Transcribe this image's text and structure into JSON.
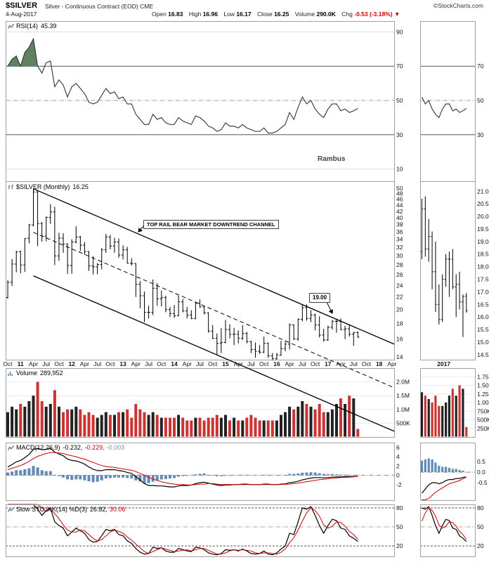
{
  "header": {
    "symbol": "$SILVER",
    "description": "Silver - Continuous Contract (EOD) CME",
    "copyright": "©StockCharts.com",
    "date": "4-Aug-2017",
    "quote": {
      "open_label": "Open",
      "open": "16.83",
      "high_label": "High",
      "high": "16.96",
      "low_label": "Low",
      "low": "16.17",
      "close_label": "Close",
      "close": "16.25",
      "volume_label": "Volume",
      "volume": "290.0K",
      "chg_label": "Chg",
      "chg": "-0.53 (-3.18%)",
      "chg_arrow": "▼"
    }
  },
  "panels": {
    "rsi": {
      "label": "RSI(14)",
      "value": "45.39",
      "yticks": [
        {
          "label": "90",
          "v": 90
        },
        {
          "label": "70",
          "v": 70
        },
        {
          "label": "50",
          "v": 50
        },
        {
          "label": "30",
          "v": 30
        },
        {
          "label": "10",
          "v": 10
        }
      ]
    },
    "price": {
      "label": "$SILVER (Monthly)",
      "value": "16.25",
      "yticks": [
        {
          "label": "50",
          "v": 50
        },
        {
          "label": "48",
          "v": 48
        },
        {
          "label": "46",
          "v": 46
        },
        {
          "label": "44",
          "v": 44
        },
        {
          "label": "42",
          "v": 42
        },
        {
          "label": "40",
          "v": 40
        },
        {
          "label": "38",
          "v": 38
        },
        {
          "label": "36",
          "v": 36
        },
        {
          "label": "34",
          "v": 34
        },
        {
          "label": "32",
          "v": 32
        },
        {
          "label": "30",
          "v": 30
        },
        {
          "label": "28",
          "v": 28
        },
        {
          "label": "26",
          "v": 26
        },
        {
          "label": "24",
          "v": 24
        },
        {
          "label": "22",
          "v": 22
        },
        {
          "label": "20",
          "v": 20
        },
        {
          "label": "18",
          "v": 18
        },
        {
          "label": "16",
          "v": 16
        },
        {
          "label": "14",
          "v": 14
        }
      ]
    },
    "volume": {
      "label": "Volume",
      "value": "289,952",
      "yticks": [
        {
          "label": "2.0M",
          "v": 2000
        },
        {
          "label": "1.5M",
          "v": 1500
        },
        {
          "label": "1.0M",
          "v": 1000
        },
        {
          "label": "500K",
          "v": 500
        }
      ]
    },
    "macd": {
      "label": "MACD(12,26,9)",
      "value1": "-0.232,",
      "value2": "-0.229,",
      "value3": "-0.003",
      "yticks": [
        {
          "label": "6",
          "v": 6
        },
        {
          "label": "4",
          "v": 4
        },
        {
          "label": "2",
          "v": 2
        },
        {
          "label": "0",
          "v": 0
        },
        {
          "label": "-2",
          "v": -2
        }
      ]
    },
    "sto": {
      "label": "Slow STO %K(14) %D(3)",
      "value1": "26.82,",
      "value2": "30.06",
      "yticks": [
        {
          "label": "80",
          "v": 80
        },
        {
          "label": "50",
          "v": 50
        },
        {
          "label": "20",
          "v": 20
        }
      ]
    }
  },
  "mini": {
    "year_label": "2017",
    "rsi_yticks": [
      {
        "label": "70",
        "v": 70
      },
      {
        "label": "50",
        "v": 50
      },
      {
        "label": "30",
        "v": 30
      }
    ],
    "price_yticks": [
      {
        "label": "21.0",
        "v": 21.0
      },
      {
        "label": "20.5",
        "v": 20.5
      },
      {
        "label": "20.0",
        "v": 20.0
      },
      {
        "label": "19.5",
        "v": 19.5
      },
      {
        "label": "19.0",
        "v": 19.0
      },
      {
        "label": "18.5",
        "v": 18.5
      },
      {
        "label": "18.0",
        "v": 18.0
      },
      {
        "label": "17.5",
        "v": 17.5
      },
      {
        "label": "17.0",
        "v": 17.0
      },
      {
        "label": "16.5",
        "v": 16.5
      },
      {
        "label": "16.0",
        "v": 16.0
      },
      {
        "label": "15.5",
        "v": 15.5
      },
      {
        "label": "15.0",
        "v": 15.0
      },
      {
        "label": "14.5",
        "v": 14.5
      }
    ],
    "vol_yticks": [
      {
        "label": "1.75M",
        "v": 1750
      },
      {
        "label": "1.50M",
        "v": 1500
      },
      {
        "label": "1.25M",
        "v": 1250
      },
      {
        "label": "1.00M",
        "v": 1000
      },
      {
        "label": "750K",
        "v": 750
      },
      {
        "label": "500K",
        "v": 500
      },
      {
        "label": "250K",
        "v": 250
      }
    ],
    "macd_yticks": [
      {
        "label": "0.5",
        "v": 0.5
      },
      {
        "label": "0.0",
        "v": 0
      },
      {
        "label": "-0.5",
        "v": -0.5
      }
    ],
    "sto_yticks": [
      {
        "label": "80",
        "v": 80
      },
      {
        "label": "50",
        "v": 50
      },
      {
        "label": "20",
        "v": 20
      }
    ]
  },
  "annotations": {
    "channel_label": "TOP RAIL BEAR MARKET DOWNTREND CHANNEL",
    "price_label": "19.00",
    "watermark": "Rambus"
  },
  "xaxis": {
    "ticks": [
      {
        "label": "Oct",
        "i": 0
      },
      {
        "label": "11",
        "i": 3,
        "bold": true
      },
      {
        "label": "Apr",
        "i": 6
      },
      {
        "label": "Jul",
        "i": 9
      },
      {
        "label": "Oct",
        "i": 12
      },
      {
        "label": "12",
        "i": 15,
        "bold": true
      },
      {
        "label": "Apr",
        "i": 18
      },
      {
        "label": "Jul",
        "i": 21
      },
      {
        "label": "Oct",
        "i": 24
      },
      {
        "label": "13",
        "i": 27,
        "bold": true
      },
      {
        "label": "Apr",
        "i": 30
      },
      {
        "label": "Jul",
        "i": 33
      },
      {
        "label": "Oct",
        "i": 36
      },
      {
        "label": "14",
        "i": 39,
        "bold": true
      },
      {
        "label": "Apr",
        "i": 42
      },
      {
        "label": "Jul",
        "i": 45
      },
      {
        "label": "Oct",
        "i": 48
      },
      {
        "label": "15",
        "i": 51,
        "bold": true
      },
      {
        "label": "Apr",
        "i": 54
      },
      {
        "label": "Jul",
        "i": 57
      },
      {
        "label": "Oct",
        "i": 60
      },
      {
        "label": "16",
        "i": 63,
        "bold": true
      },
      {
        "label": "Apr",
        "i": 66
      },
      {
        "label": "Jul",
        "i": 69
      },
      {
        "label": "Oct",
        "i": 72
      },
      {
        "label": "17",
        "i": 75,
        "bold": true
      },
      {
        "label": "Apr",
        "i": 78
      },
      {
        "label": "Jul",
        "i": 81
      },
      {
        "label": "Oct",
        "i": 84
      },
      {
        "label": "18",
        "i": 87,
        "bold": true
      },
      {
        "label": "Apr",
        "i": 90
      }
    ]
  },
  "chart_data": {
    "type": "multi-panel",
    "symbol": "$SILVER",
    "frequency": "monthly",
    "start": "Oct 2010",
    "end": "Aug 2017",
    "x_slots": 91,
    "zoom_start_index": 69,
    "zoom_slots": 16,
    "rsi": {
      "type": "line",
      "name": "RSI(14)",
      "last": 45.39,
      "overbought": 70,
      "oversold": 30,
      "values": [
        70,
        74,
        76,
        70,
        78,
        81,
        86,
        70,
        66,
        72,
        73,
        58,
        62,
        59,
        52,
        58,
        60,
        57,
        54,
        49,
        48,
        49,
        53,
        57,
        54,
        55,
        51,
        52,
        48,
        48,
        42,
        39,
        36,
        36,
        42,
        39,
        40,
        37,
        36,
        36,
        40,
        38,
        37,
        36,
        41,
        40,
        38,
        35,
        34,
        32,
        33,
        37,
        35,
        35,
        34,
        36,
        34,
        33,
        32,
        32,
        34,
        31,
        31,
        32,
        34,
        36,
        43,
        39,
        46,
        52,
        48,
        50,
        45,
        42,
        40,
        45,
        48,
        48,
        44,
        45,
        43,
        44,
        45.39
      ]
    },
    "price": {
      "type": "ohlc",
      "name": "$SILVER (Monthly)",
      "ylog": true,
      "ylim": [
        13.7,
        52.7
      ],
      "open": [
        21.9,
        24.6,
        28.2,
        31.0,
        28.0,
        34.3,
        37.9,
        48.6,
        38.3,
        34.8,
        40.1,
        41.8,
        30.0,
        34.3,
        32.8,
        27.9,
        33.3,
        34.6,
        32.5,
        31.0,
        27.8,
        27.6,
        28.1,
        31.4,
        34.6,
        32.3,
        33.3,
        30.2,
        31.4,
        28.4,
        28.3,
        24.2,
        22.2,
        19.6,
        19.6,
        23.5,
        21.7,
        21.9,
        20.0,
        19.4,
        19.1,
        21.2,
        19.8,
        19.2,
        18.7,
        21.0,
        20.4,
        19.5,
        17.0,
        16.1,
        15.5,
        15.6,
        17.2,
        16.6,
        16.6,
        16.1,
        16.7,
        15.7,
        14.8,
        14.6,
        14.5,
        15.5,
        14.1,
        13.8,
        14.2,
        14.9,
        15.4,
        17.8,
        16.0,
        18.6,
        20.3,
        18.7,
        19.2,
        17.8,
        16.5,
        15.9,
        17.5,
        18.3,
        18.3,
        17.2,
        17.3,
        16.6,
        16.83
      ],
      "high": [
        24.95,
        29.3,
        31.2,
        31.2,
        34.3,
        38.2,
        49.8,
        49.0,
        38.8,
        40.4,
        44.3,
        43.5,
        35.7,
        35.6,
        33.0,
        34.0,
        37.5,
        34.9,
        33.3,
        31.1,
        29.9,
        28.4,
        31.8,
        35.4,
        35.1,
        34.4,
        34.2,
        32.5,
        32.1,
        29.5,
        28.4,
        24.8,
        22.9,
        20.6,
        25.1,
        24.4,
        23.1,
        22.2,
        20.4,
        20.7,
        22.2,
        21.7,
        20.4,
        19.9,
        21.2,
        21.6,
        20.6,
        19.6,
        17.8,
        16.7,
        17.4,
        18.5,
        17.9,
        17.4,
        17.1,
        17.8,
        16.9,
        15.8,
        15.6,
        15.3,
        16.3,
        15.6,
        14.4,
        14.4,
        15.8,
        15.7,
        18.0,
        17.9,
        18.7,
        20.7,
        20.8,
        19.9,
        19.4,
        19.0,
        17.3,
        17.7,
        18.5,
        18.6,
        18.7,
        17.7,
        17.8,
        16.9,
        16.96
      ],
      "low": [
        21.7,
        23.9,
        26.5,
        26.3,
        26.6,
        33.0,
        37.5,
        32.3,
        33.4,
        33.5,
        38.2,
        28.0,
        28.9,
        30.7,
        26.2,
        26.2,
        33.0,
        31.1,
        30.3,
        26.8,
        26.1,
        26.1,
        27.1,
        30.7,
        31.5,
        30.7,
        29.6,
        29.2,
        28.3,
        27.9,
        22.0,
        20.2,
        18.2,
        18.7,
        19.2,
        20.6,
        20.5,
        19.6,
        18.9,
        18.8,
        19.0,
        19.6,
        18.7,
        18.6,
        18.6,
        20.3,
        19.3,
        16.8,
        16.0,
        14.2,
        14.4,
        15.5,
        16.1,
        15.3,
        15.5,
        15.9,
        15.5,
        14.4,
        13.9,
        14.3,
        14.4,
        13.9,
        13.6,
        13.7,
        14.1,
        14.6,
        14.8,
        15.9,
        15.8,
        18.3,
        18.4,
        18.2,
        17.1,
        16.2,
        15.7,
        15.8,
        17.2,
        16.8,
        17.1,
        16.0,
        16.3,
        15.2,
        16.17
      ],
      "close": [
        24.56,
        28.2,
        30.9,
        28.0,
        34.2,
        37.9,
        48.6,
        38.3,
        34.8,
        40.1,
        41.8,
        30.0,
        34.3,
        32.8,
        27.9,
        33.3,
        34.6,
        32.5,
        31.0,
        27.8,
        27.6,
        28.1,
        31.4,
        34.6,
        32.3,
        33.3,
        30.2,
        31.4,
        28.4,
        28.3,
        24.2,
        22.2,
        19.6,
        19.6,
        23.5,
        21.7,
        21.9,
        20.0,
        19.4,
        19.1,
        21.2,
        19.8,
        19.2,
        18.7,
        21.0,
        20.4,
        19.5,
        17.0,
        16.1,
        15.5,
        15.6,
        17.2,
        16.6,
        16.6,
        16.1,
        16.7,
        15.7,
        14.8,
        14.6,
        14.5,
        15.5,
        14.1,
        13.8,
        14.2,
        14.9,
        15.4,
        17.8,
        16.0,
        18.6,
        20.3,
        18.7,
        19.2,
        17.8,
        16.5,
        15.9,
        17.5,
        18.3,
        18.3,
        17.2,
        17.3,
        16.6,
        16.8,
        16.25
      ]
    },
    "volume": {
      "type": "bar",
      "name": "Volume",
      "unit": "thousands",
      "last": 290,
      "ylim": [
        0,
        2500
      ],
      "values": [
        900,
        1100,
        1000,
        1200,
        1100,
        1300,
        1500,
        2000,
        1300,
        1100,
        1200,
        1700,
        1100,
        900,
        1000,
        1000,
        1100,
        1000,
        800,
        900,
        800,
        700,
        800,
        900,
        800,
        800,
        900,
        900,
        1000,
        700,
        1200,
        1000,
        900,
        800,
        900,
        800,
        700,
        700,
        700,
        700,
        800,
        700,
        600,
        600,
        700,
        700,
        600,
        700,
        700,
        800,
        700,
        800,
        600,
        700,
        600,
        600,
        700,
        800,
        700,
        600,
        600,
        600,
        600,
        600,
        800,
        900,
        1100,
        1000,
        1100,
        1300,
        1200,
        1100,
        1000,
        1200,
        900,
        900,
        1000,
        1200,
        1400,
        1200,
        1500,
        1400,
        290
      ]
    },
    "macd": {
      "type": "line+histogram",
      "name": "MACD(12,26,9)",
      "last": [
        -0.232,
        -0.229,
        -0.003
      ],
      "macd": [
        1.8,
        2.3,
        2.9,
        3.2,
        3.8,
        4.5,
        5.6,
        5.8,
        5.5,
        5.6,
        5.8,
        5.0,
        4.6,
        4.2,
        3.5,
        3.2,
        3.1,
        2.8,
        2.4,
        1.8,
        1.3,
        1.0,
        1.0,
        1.2,
        1.2,
        1.2,
        1.0,
        0.9,
        0.6,
        0.4,
        -0.3,
        -1.0,
        -1.8,
        -2.2,
        -2.2,
        -2.3,
        -2.3,
        -2.4,
        -2.5,
        -2.5,
        -2.3,
        -2.2,
        -2.2,
        -2.1,
        -1.8,
        -1.6,
        -1.5,
        -1.7,
        -1.9,
        -2.1,
        -2.2,
        -2.1,
        -2.1,
        -2.0,
        -2.0,
        -1.9,
        -1.9,
        -2.0,
        -2.0,
        -2.0,
        -1.9,
        -1.9,
        -2.0,
        -2.0,
        -1.9,
        -1.85,
        -1.6,
        -1.5,
        -1.3,
        -1.0,
        -0.8,
        -0.6,
        -0.5,
        -0.5,
        -0.55,
        -0.5,
        -0.4,
        -0.35,
        -0.35,
        -0.3,
        -0.3,
        -0.25,
        -0.232
      ],
      "signal": [
        1.2,
        1.5,
        1.8,
        2.1,
        2.5,
        3.0,
        3.6,
        4.1,
        4.4,
        4.7,
        4.9,
        4.9,
        4.8,
        4.7,
        4.4,
        4.2,
        4.0,
        3.7,
        3.5,
        3.1,
        2.8,
        2.4,
        2.1,
        1.9,
        1.8,
        1.7,
        1.5,
        1.4,
        1.2,
        1.1,
        0.8,
        0.4,
        0.0,
        -0.5,
        -0.8,
        -1.1,
        -1.4,
        -1.6,
        -1.8,
        -1.9,
        -2.0,
        -2.0,
        -2.1,
        -2.1,
        -2.0,
        -1.9,
        -1.9,
        -1.8,
        -1.8,
        -1.9,
        -2.0,
        -2.0,
        -2.0,
        -2.0,
        -2.0,
        -2.0,
        -2.0,
        -2.0,
        -2.0,
        -2.0,
        -2.0,
        -2.0,
        -2.0,
        -2.0,
        -1.98,
        -1.95,
        -1.9,
        -1.8,
        -1.7,
        -1.55,
        -1.4,
        -1.25,
        -1.1,
        -0.95,
        -0.85,
        -0.75,
        -0.65,
        -0.55,
        -0.5,
        -0.45,
        -0.4,
        -0.32,
        -0.229
      ]
    },
    "sto": {
      "type": "line",
      "name": "Slow STO %K(14) %D(3)",
      "last": [
        26.82,
        30.06
      ],
      "k": [
        92,
        94,
        95,
        88,
        92,
        93,
        95,
        78,
        68,
        76,
        80,
        58,
        52,
        48,
        36,
        42,
        48,
        44,
        40,
        30,
        26,
        27,
        36,
        46,
        44,
        46,
        38,
        36,
        28,
        24,
        16,
        10,
        7,
        8,
        18,
        16,
        17,
        12,
        10,
        10,
        16,
        14,
        12,
        11,
        18,
        17,
        14,
        9,
        7,
        6,
        8,
        14,
        13,
        14,
        12,
        15,
        12,
        8,
        7,
        8,
        12,
        7,
        6,
        9,
        15,
        20,
        40,
        38,
        58,
        80,
        78,
        82,
        68,
        52,
        40,
        52,
        62,
        60,
        48,
        46,
        36,
        32,
        26.82
      ],
      "d": [
        90,
        92,
        94,
        92,
        92,
        91,
        93,
        89,
        80,
        74,
        78,
        71,
        63,
        53,
        45,
        42,
        42,
        45,
        44,
        38,
        32,
        28,
        30,
        36,
        42,
        45,
        43,
        40,
        34,
        29,
        23,
        17,
        11,
        8,
        11,
        14,
        17,
        15,
        13,
        11,
        12,
        13,
        14,
        12,
        14,
        16,
        16,
        13,
        10,
        7,
        7,
        9,
        12,
        14,
        13,
        14,
        13,
        12,
        9,
        8,
        9,
        9,
        8,
        7,
        10,
        15,
        25,
        33,
        45,
        59,
        72,
        80,
        76,
        67,
        53,
        48,
        51,
        58,
        57,
        51,
        43,
        38,
        30.06
      ]
    },
    "annotations": {
      "trendlines": "bear market downtrend channel: top rail, dashed mid line, bottom rail"
    }
  }
}
